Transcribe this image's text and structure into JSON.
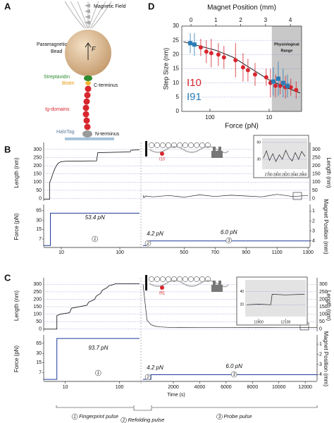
{
  "panel_a": {
    "panel": "A",
    "labels": {
      "field": "Magnetic Field",
      "bead1": "Paramagnetic",
      "bead2": "Bead",
      "force": "F",
      "streptavidin": "Streptavidin",
      "biotin": "Biotin",
      "cterm": "C-terminus",
      "ig": "Ig-domains",
      "halotag": "HaloTag",
      "nterm": "N-terminus"
    }
  },
  "chart_data": [
    {
      "type": "trace",
      "panel": "B",
      "protein": "I10",
      "ylabel": "Length (nm)",
      "y2label": "Length (nm)",
      "ylim": [
        -15,
        330
      ],
      "yticks": [
        0,
        50,
        100,
        150,
        200,
        250,
        300
      ],
      "grid": true,
      "x_log_lim": [
        5,
        217
      ],
      "x_log_ticks": [
        10,
        100
      ],
      "x_lin_lim": [
        235,
        1313
      ],
      "x_lin_ticks": [
        500,
        700,
        900,
        1100,
        1300
      ],
      "length_log": {
        "x": [
          5,
          6.3,
          6.3,
          6.8,
          7,
          7.3,
          7.7,
          8.1,
          8.6,
          9.2,
          10,
          12,
          40,
          42,
          150,
          155,
          217
        ],
        "values": [
          -5,
          -5,
          95,
          125,
          140,
          160,
          180,
          195,
          210,
          220,
          225,
          228,
          230,
          280,
          285,
          295,
          298
        ]
      },
      "length_lin": {
        "x": [
          235,
          240,
          250,
          300,
          400,
          500,
          600,
          700,
          800,
          900,
          1000,
          1100,
          1200,
          1300
        ],
        "values": [
          20,
          5,
          15,
          10,
          18,
          8,
          22,
          12,
          20,
          15,
          10,
          25,
          12,
          18
        ]
      },
      "force_ylabel": "Force (pN)",
      "force_ylim": [
        3.8,
        90
      ],
      "force_yticks": [
        65,
        30,
        15,
        7
      ],
      "magnet_label": "Magnet Position (mm)",
      "magnet_lim": [
        4.6,
        0.55
      ],
      "magnet_ticks": [
        1,
        2,
        3,
        4
      ],
      "force_log": {
        "x": [
          5,
          6.5,
          6.5,
          217
        ],
        "values": [
          4.2,
          4.2,
          53.4,
          53.4
        ]
      },
      "force_lin": {
        "x": [
          235,
          265,
          265,
          1313
        ],
        "values": [
          4.2,
          4.2,
          6.0,
          6.0
        ]
      },
      "pulse_labels": [
        "53.4 pN",
        "4.2 pN",
        "6.0 pN"
      ],
      "phase_labels": [
        "1",
        "2",
        "3"
      ],
      "inset": {
        "xlim": [
          2765,
          2870
        ],
        "xticks": [
          2780,
          2800,
          2820,
          2840,
          2860
        ],
        "ylim": [
          10,
          70
        ],
        "yticks": [
          30,
          60
        ],
        "x": [
          2768,
          2775,
          2782,
          2790,
          2797,
          2805,
          2812,
          2820,
          2828,
          2835,
          2842,
          2850,
          2857,
          2865
        ],
        "values": [
          32,
          45,
          28,
          40,
          26,
          38,
          30,
          46,
          33,
          27,
          42,
          30,
          44,
          35
        ]
      }
    },
    {
      "type": "trace",
      "panel": "C",
      "protein": "I91",
      "xlabel": "Time (s)",
      "ylabel": "Length (nm)",
      "y2label": "Length (nm)",
      "ylim": [
        -15,
        330
      ],
      "yticks": [
        0,
        50,
        100,
        150,
        200,
        250,
        300
      ],
      "grid": true,
      "x_log_lim": [
        4,
        234
      ],
      "x_log_ticks": [
        10,
        100
      ],
      "x_lin_lim": [
        -300,
        12900
      ],
      "x_lin_ticks": [
        2000,
        4000,
        6000,
        8000,
        10000,
        12000
      ],
      "length_log": {
        "x": [
          4,
          7,
          7,
          8,
          12,
          13,
          25,
          27,
          35,
          37,
          45,
          48,
          60,
          63,
          80,
          85,
          234
        ],
        "values": [
          0,
          0,
          90,
          100,
          110,
          140,
          160,
          180,
          200,
          220,
          240,
          260,
          280,
          290,
          300,
          305,
          305
        ]
      },
      "length_lin": {
        "x": [
          -300,
          0,
          300,
          600,
          1000,
          2000,
          4000,
          6000,
          8000,
          10000,
          12000,
          12900
        ],
        "values": [
          300,
          60,
          30,
          20,
          15,
          10,
          12,
          10,
          11,
          10,
          12,
          10
        ]
      },
      "force_ylabel": "Force (pN)",
      "force_ylim": [
        3.8,
        105
      ],
      "force_yticks": [
        65,
        30,
        15,
        7
      ],
      "magnet_label": "Magnet Position (mm)",
      "magnet_lim": [
        4.6,
        0.3
      ],
      "magnet_ticks": [
        1,
        2,
        3,
        4
      ],
      "force_log": {
        "x": [
          4,
          7,
          7,
          234
        ],
        "values": [
          4.2,
          4.2,
          93.7,
          93.7
        ]
      },
      "force_lin": {
        "x": [
          -300,
          300,
          300,
          12900
        ],
        "values": [
          4.2,
          4.2,
          6.0,
          6.0
        ]
      },
      "pulse_labels": [
        "93.7 pN",
        "4.2 pN",
        "6.0 pN"
      ],
      "phase_labels": [
        "1",
        "2",
        "3"
      ],
      "inset": {
        "xlim": [
          11800,
          12250
        ],
        "xticks": [
          11900,
          12100
        ],
        "ylim": [
          0,
          60
        ],
        "yticks": [
          20,
          40
        ],
        "x": [
          11810,
          11900,
          11990,
          12000,
          12100,
          12240
        ],
        "values": [
          20,
          21,
          20,
          36,
          35,
          36
        ]
      }
    },
    {
      "type": "scatter",
      "panel": "D",
      "xlabel": "Force (pN)",
      "x2label": "Magnet Position (mm)",
      "ylabel": "Step Size (nm)",
      "xscale": "log",
      "xlim": [
        299,
        2.83
      ],
      "xticks": [
        100,
        10
      ],
      "x2lim": [
        -0.37,
        4.45
      ],
      "x2ticks": [
        0,
        1,
        2,
        3,
        4
      ],
      "ylim": [
        0,
        30
      ],
      "yticks": [
        0,
        5,
        10,
        15,
        20,
        25,
        30
      ],
      "grid": true,
      "series": [
        {
          "name": "I10",
          "color": "#d7262e",
          "marker": "circle",
          "x": [
            143,
            115,
            95,
            72,
            58,
            37,
            27.6,
            22.8,
            17.3,
            11.2,
            9.5,
            7.8,
            6.5,
            5.3,
            4.3,
            3.5
          ],
          "values": [
            22.5,
            21,
            20.5,
            20,
            19,
            18,
            15.5,
            14.5,
            13,
            12,
            10,
            9,
            9,
            8.5,
            8.5,
            7.5
          ],
          "errors": [
            3,
            4,
            5,
            4,
            4,
            6,
            5,
            4,
            4,
            3,
            5,
            4,
            3,
            4,
            3,
            3
          ]
        },
        {
          "name": "I91",
          "color": "#2a7db6",
          "marker": "square",
          "x": [
            215,
            183,
            8.5,
            7.0,
            5.8,
            4.9
          ],
          "values": [
            24,
            23.5,
            10.5,
            11.5,
            10,
            9
          ],
          "errors": [
            3.5,
            4,
            5,
            6,
            5,
            4
          ]
        }
      ],
      "fit": {
        "color": "#111111",
        "x": [
          280,
          150,
          80,
          40,
          20,
          10,
          6,
          4,
          3
        ],
        "values": [
          24.5,
          23,
          21.5,
          19,
          15,
          11,
          9,
          7.5,
          6.5
        ]
      },
      "shade": {
        "range": [
          9.0,
          2.83
        ],
        "color": "#c8c8c8",
        "label": [
          "Physiological",
          "Range"
        ]
      }
    }
  ],
  "legend": {
    "items": [
      {
        "number": "1",
        "text": "Fingerprint pulse"
      },
      {
        "number": "2",
        "text": "Refolding pulse"
      },
      {
        "number": "3",
        "text": "Probe pulse"
      }
    ]
  }
}
